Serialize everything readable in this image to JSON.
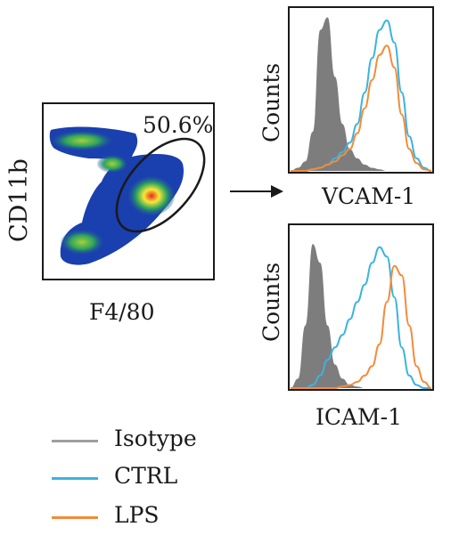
{
  "panels": {
    "dotplot": {
      "xlabel": "F4/80",
      "ylabel": "CD11b",
      "gate_percent": "50.6%"
    },
    "vcam": {
      "xlabel": "VCAM-1",
      "ylabel": "Counts"
    },
    "icam": {
      "xlabel": "ICAM-1",
      "ylabel": "Counts"
    }
  },
  "legend": {
    "items": [
      {
        "label": "Isotype",
        "color": "#9e9e9e"
      },
      {
        "label": "CTRL",
        "color": "#3bb3e0"
      },
      {
        "label": "LPS",
        "color": "#f28c3a"
      }
    ]
  },
  "colors": {
    "isotype_fill": "#7d7d7d",
    "ctrl": "#3bb3e0",
    "lps": "#f28c3a",
    "density_low": "#1a3fae",
    "density_mid": "#2fa55a",
    "density_high": "#e82a1a"
  },
  "chart_data": [
    {
      "type": "histogram",
      "name": "VCAM-1",
      "series": [
        {
          "name": "Isotype",
          "values": [
            0,
            2,
            6,
            25,
            90,
            98,
            60,
            30,
            14,
            8,
            4,
            2,
            1,
            0,
            0,
            0,
            0,
            0,
            0,
            0
          ]
        },
        {
          "name": "CTRL",
          "values": [
            0,
            0,
            0,
            1,
            2,
            4,
            8,
            12,
            18,
            30,
            50,
            72,
            90,
            96,
            82,
            50,
            22,
            8,
            2,
            0
          ]
        },
        {
          "name": "LPS",
          "values": [
            0,
            0,
            0,
            1,
            2,
            4,
            6,
            10,
            14,
            24,
            40,
            58,
            74,
            80,
            66,
            36,
            14,
            5,
            1,
            0
          ]
        }
      ]
    },
    {
      "type": "histogram",
      "name": "ICAM-1",
      "series": [
        {
          "name": "Isotype",
          "values": [
            0,
            6,
            40,
            92,
            80,
            40,
            15,
            6,
            2,
            1,
            0,
            0,
            0,
            0,
            0,
            0,
            0,
            0,
            0,
            0
          ]
        },
        {
          "name": "CTRL",
          "values": [
            0,
            0,
            0,
            2,
            8,
            18,
            26,
            34,
            44,
            55,
            66,
            80,
            90,
            84,
            58,
            26,
            8,
            2,
            0,
            0
          ]
        },
        {
          "name": "LPS",
          "values": [
            0,
            0,
            0,
            0,
            0,
            0,
            0,
            1,
            2,
            4,
            8,
            14,
            28,
            55,
            78,
            72,
            40,
            14,
            4,
            0
          ]
        }
      ]
    }
  ]
}
